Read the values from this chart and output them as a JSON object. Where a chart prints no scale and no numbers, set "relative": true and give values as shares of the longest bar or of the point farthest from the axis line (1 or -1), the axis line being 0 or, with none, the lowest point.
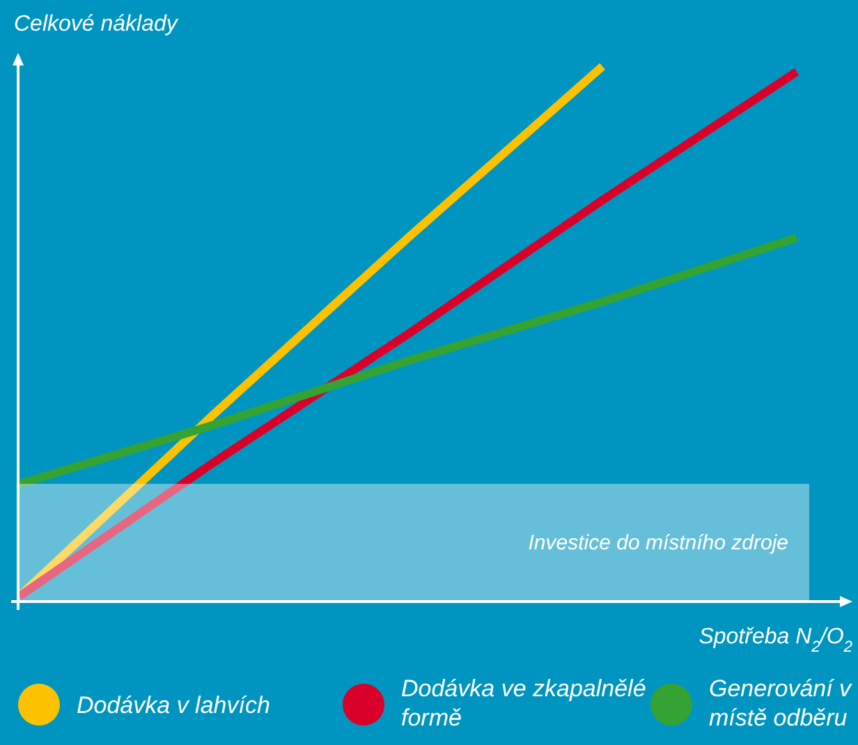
{
  "chart_data": {
    "type": "line",
    "relative": true,
    "ylabel": "Celkové náklady",
    "xlabel": "Spotřeba N$_{2}$/O$_{2}$",
    "categories": [
      null,
      null,
      null,
      null,
      null
    ],
    "legend": "bottom",
    "line_style": "solid",
    "marker": "none",
    "series": [
      {
        "name": "Dodávka v lahvích",
        "color": "#fcc200",
        "values": [
          0.01,
          0.35,
          0.68,
          1,
          null
        ]
      },
      {
        "name": "Dodávka ve zkapalnělé formě",
        "color": "#d9002a",
        "values": [
          0.01,
          0.26,
          0.5,
          0.75,
          0.99
        ]
      },
      {
        "name": "Generování v místě odběru",
        "color": "#34a333",
        "values": [
          0.22,
          0.33,
          0.45,
          0.56,
          0.68
        ]
      }
    ],
    "bands": [
      {
        "axis": "y",
        "from": 0,
        "to": 0.22,
        "label": "Investice do místního zdroje",
        "color": "#ffffff"
      }
    ]
  }
}
